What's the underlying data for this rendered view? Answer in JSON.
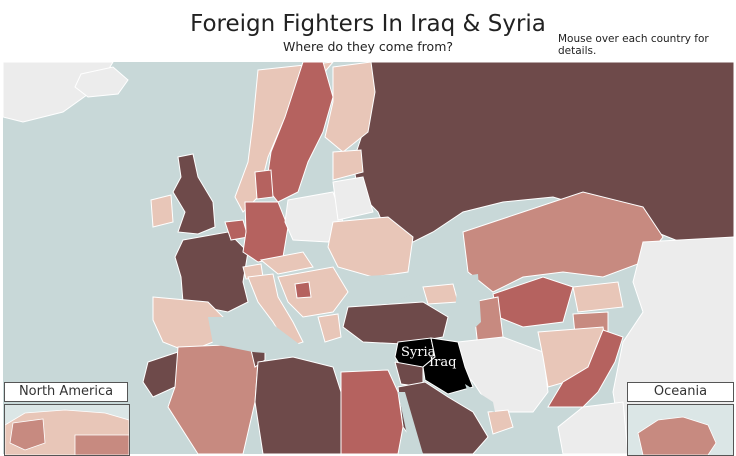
{
  "header": {
    "title": "Foreign Fighters In Iraq & Syria",
    "subtitle": "Where do they come from?",
    "hint": "Mouse over each country for details."
  },
  "map": {
    "labels": {
      "syria": "Syria",
      "iraq": "Iraq"
    },
    "colors": {
      "sea": "#c8d8d8",
      "nodata": "#ececec",
      "level1": "#e8c6b8",
      "level2": "#c78a80",
      "level3": "#b5625f",
      "level4": "#6e4a4a",
      "focus": "#000000"
    }
  },
  "insets": {
    "north_america": "North America",
    "oceania": "Oceania"
  }
}
